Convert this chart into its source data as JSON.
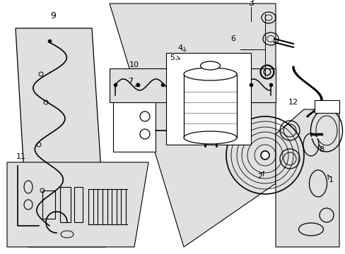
{
  "bg_color": "#ffffff",
  "diagram_bg": "#e0e0e0",
  "line_color": "#000000",
  "fig_width": 4.89,
  "fig_height": 3.6,
  "dpi": 100
}
